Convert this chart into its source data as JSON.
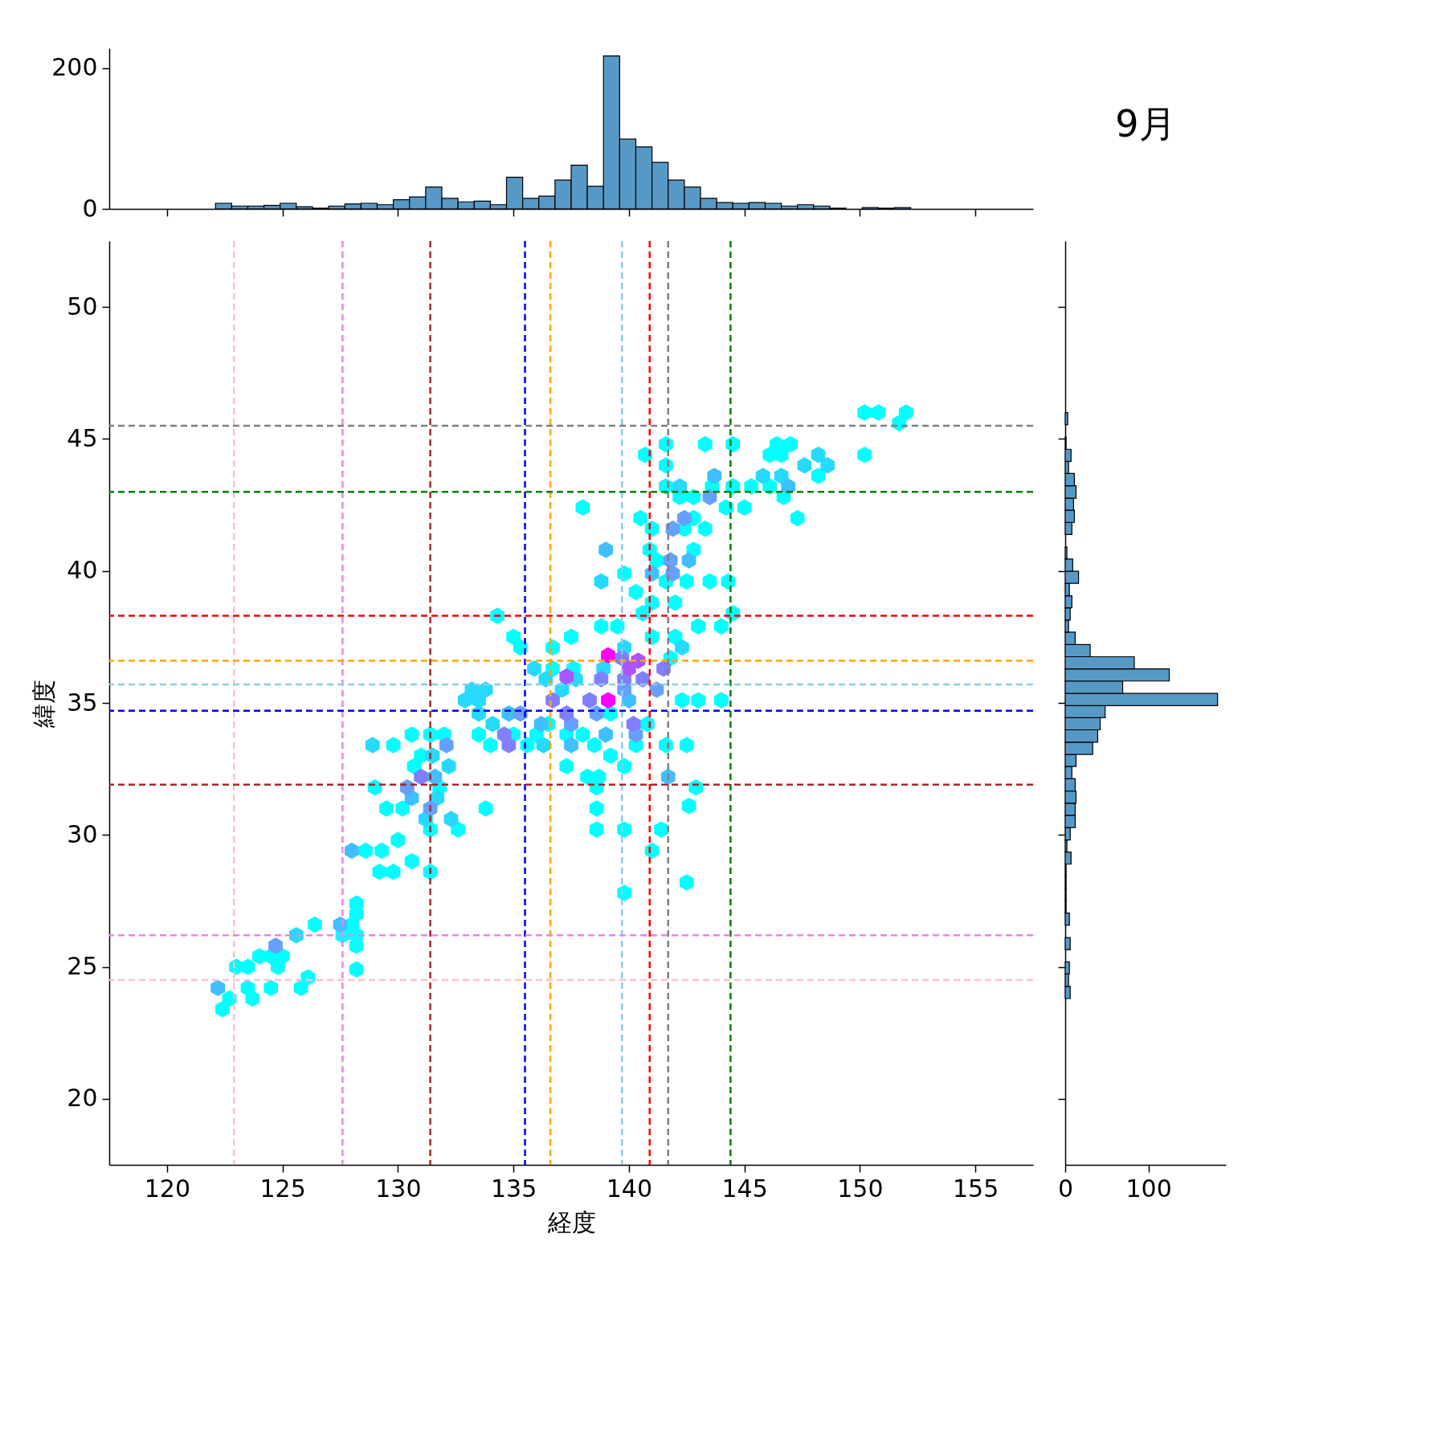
{
  "chart_data": [
    {
      "type": "histogram",
      "color": "#5799c6",
      "bins": [
        122.1,
        122.8,
        123.5,
        124.2,
        124.9,
        125.6,
        126.3,
        127.0,
        127.7,
        128.4,
        129.1,
        129.8,
        130.5,
        131.2,
        131.9,
        132.6,
        133.3,
        134.0,
        134.7,
        135.4,
        136.1,
        136.8,
        137.5,
        138.2,
        138.9,
        139.6,
        140.3,
        141.0,
        141.7,
        142.4,
        143.1,
        143.8,
        144.5,
        145.2,
        145.9,
        146.6,
        147.3,
        148.0,
        148.7,
        149.4,
        150.1,
        150.8,
        151.5,
        152.2
      ],
      "values": [
        8,
        4,
        4,
        5,
        8,
        3,
        1,
        4,
        7,
        8,
        6,
        13,
        17,
        31,
        15,
        10,
        11,
        6,
        45,
        15,
        18,
        41,
        62,
        32,
        217,
        99,
        88,
        66,
        41,
        31,
        15,
        9,
        8,
        9,
        8,
        4,
        6,
        4,
        1,
        0,
        2,
        1,
        2
      ],
      "xlim": [
        117.5,
        157.5
      ],
      "xticks": [
        120,
        125,
        130,
        135,
        140,
        145,
        150,
        155
      ],
      "ylim": [
        0,
        228
      ],
      "yticks": [
        0,
        200
      ],
      "tick_labels": "y"
    },
    {
      "type": "scatter",
      "xlabel": "経度",
      "ylabel": "緯度",
      "xlim": [
        117.5,
        157.5
      ],
      "ylim": [
        17.5,
        52.5
      ],
      "xticks": [
        120,
        125,
        130,
        135,
        140,
        145,
        150,
        155
      ],
      "yticks": [
        20,
        25,
        30,
        35,
        40,
        45,
        50
      ],
      "series": [
        {
          "color": "#00ffff",
          "x": [
            150.2,
            150.8,
            152.0,
            151.7,
            150.2,
            141.6,
            140.7,
            143.3,
            144.5,
            141.6,
            146.4,
            147.0,
            146.1,
            146.6,
            148.2,
            141.6,
            142.2,
            142.8,
            143.6,
            144.5,
            145.3,
            146.1,
            146.7,
            147.3,
            145.0,
            144.2,
            142.8,
            142.4,
            143.3,
            140.5,
            141.0,
            138.0,
            139.8,
            140.9,
            141.2,
            142.8,
            141.6,
            142.5,
            143.5,
            144.3,
            140.3,
            141.0,
            142.0,
            140.6,
            143.0,
            144.0,
            144.5,
            138.8,
            139.5,
            137.5,
            136.7,
            134.3,
            135.0,
            135.3,
            142.0,
            141.0,
            142.3,
            143.0,
            144.0,
            136.7,
            137.6,
            139.2,
            136.5,
            137.3,
            138.5,
            139.2,
            140.3,
            141.6,
            142.5,
            137.3,
            138.2,
            138.7,
            139.8,
            138.6,
            142.9,
            142.6,
            138.6,
            138.6,
            139.8,
            141.4,
            141.0,
            139.8,
            142.5,
            133.8,
            132.0,
            130.6,
            131.4,
            129.8,
            130.7,
            131.0,
            129.0,
            131.8,
            129.5,
            130.2,
            130.0,
            130.6,
            131.4,
            129.2,
            129.8,
            131.4,
            132.6,
            128.6,
            129.3,
            128.2,
            128.2,
            128.0,
            128.2,
            128.2,
            128.2,
            127.6,
            126.4,
            124.5,
            124.0,
            123.5,
            123.0,
            124.8,
            125.0,
            124.5,
            123.7,
            122.4,
            122.7,
            123.5,
            125.8,
            126.1,
            134.0,
            133.5,
            135.0,
            135.6,
            136.0,
            138.0,
            140.8,
            141.8
          ],
          "values": [
            46.0,
            46.0,
            46.0,
            45.6,
            44.4,
            44.8,
            44.4,
            44.8,
            44.8,
            44.0,
            44.8,
            44.8,
            44.4,
            44.4,
            43.6,
            43.2,
            42.8,
            42.8,
            43.2,
            43.2,
            43.2,
            43.2,
            42.8,
            42.0,
            42.4,
            42.4,
            42.0,
            41.6,
            41.6,
            42.0,
            41.6,
            42.4,
            39.9,
            40.8,
            40.4,
            40.8,
            39.6,
            39.6,
            39.6,
            39.6,
            39.2,
            38.8,
            38.8,
            38.4,
            37.9,
            37.9,
            38.4,
            37.9,
            37.9,
            37.5,
            37.1,
            38.3,
            37.5,
            37.1,
            37.5,
            37.5,
            35.1,
            35.1,
            35.1,
            36.3,
            36.3,
            34.6,
            34.2,
            33.8,
            33.4,
            33.0,
            33.4,
            33.4,
            33.4,
            32.6,
            32.2,
            32.2,
            32.6,
            31.8,
            31.8,
            31.1,
            31.0,
            30.2,
            30.2,
            30.2,
            29.4,
            27.8,
            28.2,
            31.0,
            33.8,
            33.8,
            33.8,
            33.4,
            32.6,
            33.0,
            31.8,
            31.8,
            31.0,
            31.0,
            29.8,
            29.0,
            28.6,
            28.6,
            28.6,
            30.2,
            30.2,
            29.4,
            29.4,
            27.4,
            27.0,
            26.6,
            26.2,
            25.8,
            24.9,
            26.2,
            26.6,
            25.4,
            25.4,
            25.0,
            25.0,
            25.0,
            25.4,
            24.2,
            23.8,
            23.4,
            23.8,
            24.2,
            24.2,
            24.6,
            33.4,
            33.8,
            33.8,
            33.4,
            33.8,
            33.8,
            34.2,
            36.7
          ]
        },
        {
          "color": "#26d9ff",
          "x": [
            148.6,
            147.6,
            148.2,
            145.8,
            146.6,
            142.2,
            132.9,
            133.5,
            133.2,
            133.8,
            133.5,
            134.1,
            135.9,
            136.4,
            137.1,
            137.7,
            138.9,
            139.8,
            131.5,
            132.2,
            131.7,
            131.2,
            132.3,
            125.6,
            128.9,
            136.3,
            138.8,
            142.3
          ],
          "values": [
            44.0,
            44.0,
            44.4,
            43.6,
            43.6,
            43.2,
            35.1,
            35.1,
            35.5,
            35.5,
            34.6,
            34.2,
            36.3,
            35.9,
            35.5,
            35.9,
            36.3,
            37.1,
            33.0,
            32.6,
            31.4,
            30.6,
            30.6,
            26.2,
            33.4,
            33.4,
            39.6,
            37.1
          ]
        },
        {
          "color": "#40bfff",
          "x": [
            143.7,
            146.9,
            142.6,
            141.0,
            134.8,
            136.2,
            137.5,
            139.0,
            130.6,
            131.6,
            128.0,
            127.5,
            122.2,
            141.7,
            139.0,
            140.0
          ],
          "values": [
            43.6,
            43.2,
            40.4,
            39.9,
            34.6,
            34.2,
            33.4,
            33.8,
            31.4,
            32.2,
            29.4,
            26.6,
            24.2,
            32.2,
            40.8,
            35.1
          ]
        },
        {
          "color": "#66a0ff",
          "x": [
            142.4,
            141.9,
            143.5,
            141.8,
            141.9,
            132.1,
            130.4,
            131.4,
            124.7,
            135.3,
            137.5,
            139.8,
            140.3,
            138.6,
            141.2
          ],
          "values": [
            42.0,
            41.6,
            42.8,
            40.4,
            39.9,
            33.4,
            31.8,
            31.0,
            25.8,
            34.6,
            34.2,
            35.5,
            33.8,
            34.6,
            35.5
          ]
        },
        {
          "color": "#8080ff",
          "x": [
            134.6,
            134.8,
            137.3,
            138.3,
            138.8,
            139.7,
            140.6,
            140.2,
            136.7,
            141.5,
            131.0,
            139.8
          ],
          "values": [
            33.8,
            33.4,
            34.6,
            35.1,
            35.9,
            36.7,
            35.9,
            34.2,
            35.1,
            36.3,
            32.2,
            35.9
          ]
        },
        {
          "color": "#aa55ff",
          "x": [
            137.3,
            140.0,
            140.4
          ],
          "values": [
            36.0,
            36.3,
            36.6
          ]
        },
        {
          "color": "#ff00ff",
          "x": [
            139.1,
            139.1
          ],
          "values": [
            35.1,
            36.8
          ]
        }
      ],
      "ref_lines": [
        {
          "axis": "x",
          "value": 122.9,
          "color": "#ffc0cb",
          "line_style": "dashed"
        },
        {
          "axis": "x",
          "value": 127.6,
          "color": "#ee82ee",
          "line_style": "dashed"
        },
        {
          "axis": "x",
          "value": 131.4,
          "color": "#a52a2a",
          "line_style": "dashed"
        },
        {
          "axis": "x",
          "value": 135.5,
          "color": "#0000ff",
          "line_style": "dashed"
        },
        {
          "axis": "x",
          "value": 136.6,
          "color": "#ffa500",
          "line_style": "dashed"
        },
        {
          "axis": "x",
          "value": 139.7,
          "color": "#87ceeb",
          "line_style": "dashed"
        },
        {
          "axis": "x",
          "value": 140.9,
          "color": "#ff0000",
          "line_style": "dashed"
        },
        {
          "axis": "x",
          "value": 141.7,
          "color": "#808080",
          "line_style": "dashed"
        },
        {
          "axis": "x",
          "value": 144.4,
          "color": "#008000",
          "line_style": "dashed"
        },
        {
          "axis": "y",
          "value": 45.5,
          "color": "#808080",
          "line_style": "dashed"
        },
        {
          "axis": "y",
          "value": 43.0,
          "color": "#008000",
          "line_style": "dashed"
        },
        {
          "axis": "y",
          "value": 38.3,
          "color": "#ff0000",
          "line_style": "dashed"
        },
        {
          "axis": "y",
          "value": 36.6,
          "color": "#ffa500",
          "line_style": "dashed"
        },
        {
          "axis": "y",
          "value": 35.7,
          "color": "#87ceeb",
          "line_style": "dashed"
        },
        {
          "axis": "y",
          "value": 34.7,
          "color": "#0000ff",
          "line_style": "dashed"
        },
        {
          "axis": "y",
          "value": 31.9,
          "color": "#a52a2a",
          "line_style": "dashed"
        },
        {
          "axis": "y",
          "value": 26.2,
          "color": "#ee82ee",
          "line_style": "dashed"
        },
        {
          "axis": "y",
          "value": 24.5,
          "color": "#ffc0cb",
          "line_style": "dashed"
        }
      ]
    },
    {
      "type": "histogram",
      "title": "9月",
      "orientation": "horizontal",
      "color": "#5799c6",
      "bins": [
        23.8,
        24.26,
        24.73,
        25.19,
        25.65,
        26.11,
        26.58,
        27.04,
        27.5,
        27.96,
        28.43,
        28.89,
        29.35,
        29.81,
        30.28,
        30.74,
        31.2,
        31.66,
        32.13,
        32.59,
        33.05,
        33.51,
        33.98,
        34.44,
        34.9,
        35.36,
        35.83,
        36.29,
        36.75,
        37.21,
        37.68,
        38.14,
        38.6,
        39.06,
        39.53,
        39.99,
        40.45,
        40.91,
        41.38,
        41.84,
        42.3,
        42.76,
        43.23,
        43.69,
        44.15,
        44.61,
        45.08,
        45.54,
        46.0
      ],
      "values": [
        6,
        4,
        5,
        0,
        6,
        0,
        5,
        1,
        1,
        1,
        1,
        7,
        2,
        6,
        12,
        12,
        13,
        12,
        8,
        13,
        33,
        39,
        42,
        48,
        183,
        69,
        125,
        83,
        30,
        12,
        4,
        6,
        8,
        5,
        16,
        9,
        2,
        0,
        8,
        11,
        10,
        13,
        11,
        4,
        7,
        1,
        0,
        3
      ],
      "xlim": [
        0,
        193
      ],
      "xticks": [
        0,
        100
      ],
      "ylim": [
        17.5,
        52.5
      ],
      "yticks": [
        20,
        25,
        30,
        35,
        40,
        45,
        50
      ],
      "tick_labels": "x"
    }
  ]
}
